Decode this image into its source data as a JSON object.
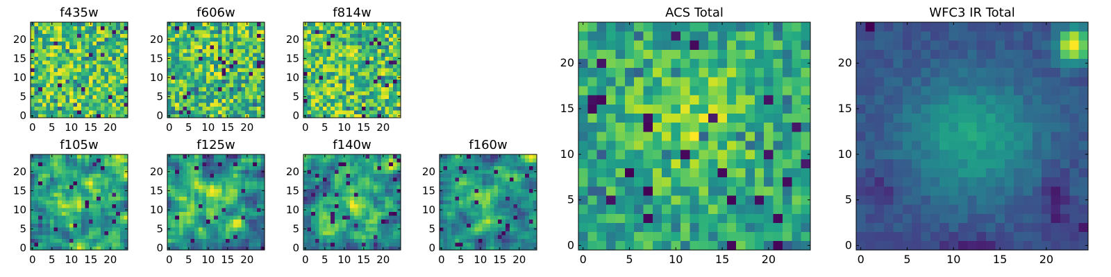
{
  "chart_data": [
    {
      "type": "heatmap",
      "title": "f435w",
      "colormap": "viridis",
      "grid": "25x25",
      "xticks": [
        "0",
        "5",
        "10",
        "15",
        "20"
      ],
      "yticks": [
        "0",
        "5",
        "10",
        "15",
        "20"
      ],
      "seed": 11,
      "style": "noise"
    },
    {
      "type": "heatmap",
      "title": "f606w",
      "colormap": "viridis",
      "grid": "25x25",
      "xticks": [
        "0",
        "5",
        "10",
        "15",
        "20"
      ],
      "yticks": [
        "0",
        "5",
        "10",
        "15",
        "20"
      ],
      "seed": 23,
      "style": "noise"
    },
    {
      "type": "heatmap",
      "title": "f814w",
      "colormap": "viridis",
      "grid": "25x25",
      "xticks": [
        "0",
        "5",
        "10",
        "15",
        "20"
      ],
      "yticks": [
        "0",
        "5",
        "10",
        "15",
        "20"
      ],
      "seed": 37,
      "style": "noise"
    },
    {
      "type": "heatmap",
      "title": "f105w",
      "colormap": "viridis",
      "grid": "25x25",
      "xticks": [
        "0",
        "5",
        "10",
        "15",
        "20"
      ],
      "yticks": [
        "0",
        "5",
        "10",
        "15",
        "20"
      ],
      "seed": 41,
      "style": "smooth"
    },
    {
      "type": "heatmap",
      "title": "f125w",
      "colormap": "viridis",
      "grid": "25x25",
      "xticks": [
        "0",
        "5",
        "10",
        "15",
        "20"
      ],
      "yticks": [
        "0",
        "5",
        "10",
        "15",
        "20"
      ],
      "seed": 53,
      "style": "smooth"
    },
    {
      "type": "heatmap",
      "title": "f140w",
      "colormap": "viridis",
      "grid": "25x25",
      "xticks": [
        "0",
        "5",
        "10",
        "15",
        "20"
      ],
      "yticks": [
        "0",
        "5",
        "10",
        "15",
        "20"
      ],
      "seed": 67,
      "style": "smooth"
    },
    {
      "type": "heatmap",
      "title": "f160w",
      "colormap": "viridis",
      "grid": "25x25",
      "xticks": [
        "0",
        "5",
        "10",
        "15",
        "20"
      ],
      "yticks": [
        "0",
        "5",
        "10",
        "15",
        "20"
      ],
      "seed": 71,
      "style": "smooth"
    },
    {
      "type": "heatmap",
      "title": "ACS Total",
      "colormap": "viridis",
      "grid": "25x25",
      "xticks": [
        "0",
        "5",
        "10",
        "15",
        "20"
      ],
      "yticks": [
        "0",
        "5",
        "10",
        "15",
        "20"
      ],
      "seed": 83,
      "style": "acs"
    },
    {
      "type": "heatmap",
      "title": "WFC3 IR Total",
      "colormap": "viridis",
      "grid": "25x25",
      "xticks": [
        "0",
        "5",
        "10",
        "15",
        "20"
      ],
      "yticks": [
        "0",
        "5",
        "10",
        "15",
        "20"
      ],
      "seed": 97,
      "style": "ir"
    }
  ]
}
